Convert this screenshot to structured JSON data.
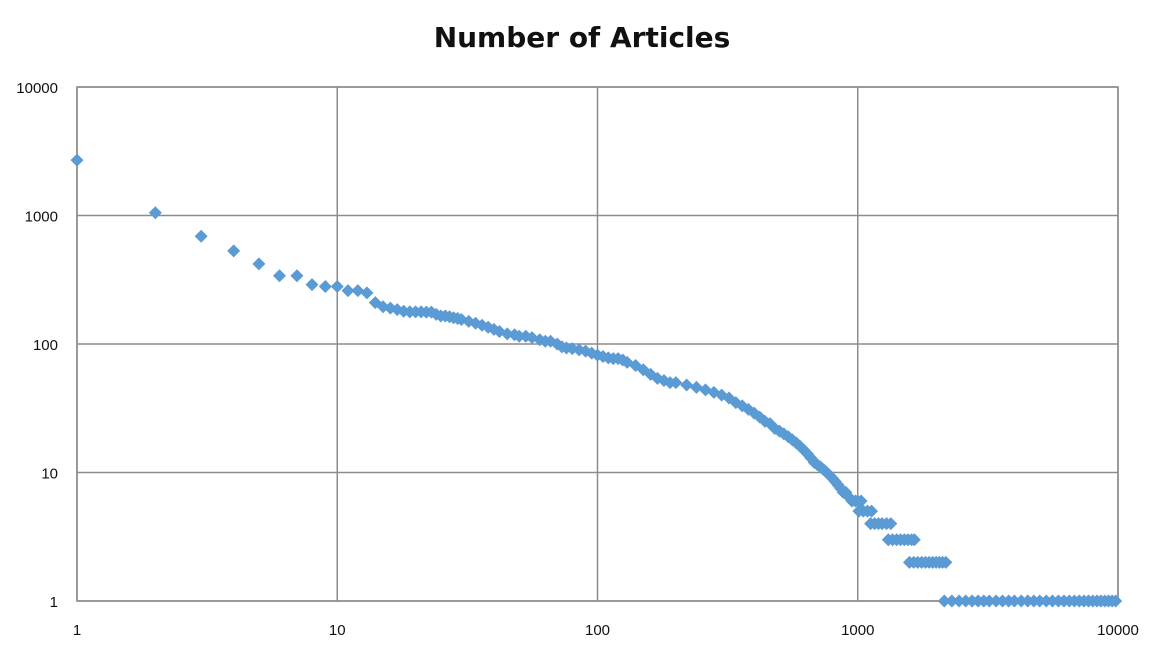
{
  "chart_data": {
    "type": "scatter",
    "title": "Number of Articles",
    "xlabel": "",
    "ylabel": "",
    "x_scale": "log",
    "y_scale": "log",
    "xlim": [
      1,
      10000
    ],
    "ylim": [
      1,
      10000
    ],
    "x_ticks": [
      "1",
      "10",
      "100",
      "1000",
      "10000"
    ],
    "y_ticks": [
      "1",
      "10",
      "100",
      "1000",
      "10000"
    ],
    "grid": true,
    "legend": "none",
    "marker": "diamond",
    "marker_color": "#5b9bd5",
    "series": [
      {
        "points": [
          [
            1,
            2700
          ],
          [
            2,
            1050
          ],
          [
            3,
            690
          ],
          [
            4,
            530
          ],
          [
            5,
            420
          ],
          [
            6,
            340
          ],
          [
            7,
            340
          ],
          [
            8,
            290
          ],
          [
            9,
            280
          ],
          [
            10,
            280
          ],
          [
            11,
            260
          ],
          [
            12,
            260
          ],
          [
            13,
            250
          ],
          [
            14,
            210
          ],
          [
            15,
            195
          ],
          [
            16,
            190
          ],
          [
            17,
            185
          ],
          [
            18,
            180
          ],
          [
            19,
            178
          ],
          [
            20,
            178
          ],
          [
            21,
            178
          ],
          [
            22,
            177
          ],
          [
            23,
            177
          ],
          [
            24,
            170
          ],
          [
            25,
            165
          ],
          [
            26,
            165
          ],
          [
            27,
            163
          ],
          [
            28,
            160
          ],
          [
            29,
            158
          ],
          [
            30,
            155
          ],
          [
            32,
            150
          ],
          [
            34,
            145
          ],
          [
            36,
            140
          ],
          [
            38,
            135
          ],
          [
            40,
            130
          ],
          [
            42,
            125
          ],
          [
            45,
            120
          ],
          [
            48,
            118
          ],
          [
            50,
            115
          ],
          [
            53,
            115
          ],
          [
            56,
            112
          ],
          [
            60,
            108
          ],
          [
            63,
            105
          ],
          [
            66,
            105
          ],
          [
            70,
            100
          ],
          [
            73,
            95
          ],
          [
            76,
            93
          ],
          [
            80,
            92
          ],
          [
            85,
            90
          ],
          [
            90,
            88
          ],
          [
            95,
            85
          ],
          [
            100,
            82
          ],
          [
            105,
            80
          ],
          [
            110,
            78
          ],
          [
            115,
            77
          ],
          [
            120,
            77
          ],
          [
            125,
            75
          ],
          [
            130,
            72
          ],
          [
            140,
            68
          ],
          [
            150,
            63
          ],
          [
            160,
            58
          ],
          [
            170,
            54
          ],
          [
            180,
            52
          ],
          [
            190,
            50
          ],
          [
            200,
            50
          ],
          [
            220,
            48
          ],
          [
            240,
            46
          ],
          [
            260,
            44
          ],
          [
            280,
            42
          ],
          [
            300,
            40
          ],
          [
            320,
            38
          ],
          [
            340,
            35
          ],
          [
            360,
            33
          ],
          [
            380,
            31
          ],
          [
            400,
            29
          ],
          [
            420,
            27
          ],
          [
            440,
            25
          ],
          [
            460,
            24
          ],
          [
            480,
            22
          ],
          [
            500,
            21
          ],
          [
            520,
            20
          ],
          [
            540,
            19
          ],
          [
            560,
            18
          ],
          [
            580,
            17
          ],
          [
            600,
            16
          ],
          [
            620,
            15
          ],
          [
            640,
            14
          ],
          [
            660,
            13
          ],
          [
            680,
            12
          ],
          [
            700,
            11.5
          ],
          [
            720,
            11
          ],
          [
            740,
            10.5
          ],
          [
            760,
            10
          ],
          [
            780,
            9.5
          ],
          [
            800,
            9
          ],
          [
            820,
            8.5
          ],
          [
            840,
            8
          ],
          [
            860,
            7.5
          ],
          [
            880,
            7
          ],
          [
            900,
            7
          ],
          [
            920,
            6.5
          ],
          [
            950,
            6
          ],
          [
            980,
            6
          ],
          [
            1000,
            6
          ],
          [
            1030,
            6
          ],
          [
            1010,
            5
          ],
          [
            1050,
            5
          ],
          [
            1090,
            5
          ],
          [
            1130,
            5
          ],
          [
            1120,
            4
          ],
          [
            1160,
            4
          ],
          [
            1200,
            4
          ],
          [
            1240,
            4
          ],
          [
            1290,
            4
          ],
          [
            1340,
            4
          ],
          [
            1310,
            3
          ],
          [
            1360,
            3
          ],
          [
            1410,
            3
          ],
          [
            1460,
            3
          ],
          [
            1510,
            3
          ],
          [
            1560,
            3
          ],
          [
            1610,
            3
          ],
          [
            1650,
            3
          ],
          [
            1580,
            2
          ],
          [
            1640,
            2
          ],
          [
            1700,
            2
          ],
          [
            1760,
            2
          ],
          [
            1820,
            2
          ],
          [
            1880,
            2
          ],
          [
            1940,
            2
          ],
          [
            2000,
            2
          ],
          [
            2060,
            2
          ],
          [
            2120,
            2
          ],
          [
            2180,
            2
          ],
          [
            2150,
            1
          ],
          [
            2300,
            1
          ],
          [
            2450,
            1
          ],
          [
            2600,
            1
          ],
          [
            2750,
            1
          ],
          [
            2900,
            1
          ],
          [
            3050,
            1
          ],
          [
            3200,
            1
          ],
          [
            3400,
            1
          ],
          [
            3600,
            1
          ],
          [
            3800,
            1
          ],
          [
            4000,
            1
          ],
          [
            4250,
            1
          ],
          [
            4500,
            1
          ],
          [
            4750,
            1
          ],
          [
            5000,
            1
          ],
          [
            5300,
            1
          ],
          [
            5600,
            1
          ],
          [
            5900,
            1
          ],
          [
            6200,
            1
          ],
          [
            6500,
            1
          ],
          [
            6800,
            1
          ],
          [
            7100,
            1
          ],
          [
            7400,
            1
          ],
          [
            7700,
            1
          ],
          [
            8000,
            1
          ],
          [
            8300,
            1
          ],
          [
            8600,
            1
          ],
          [
            8900,
            1
          ],
          [
            9200,
            1
          ],
          [
            9500,
            1
          ],
          [
            9800,
            1
          ]
        ]
      }
    ]
  }
}
